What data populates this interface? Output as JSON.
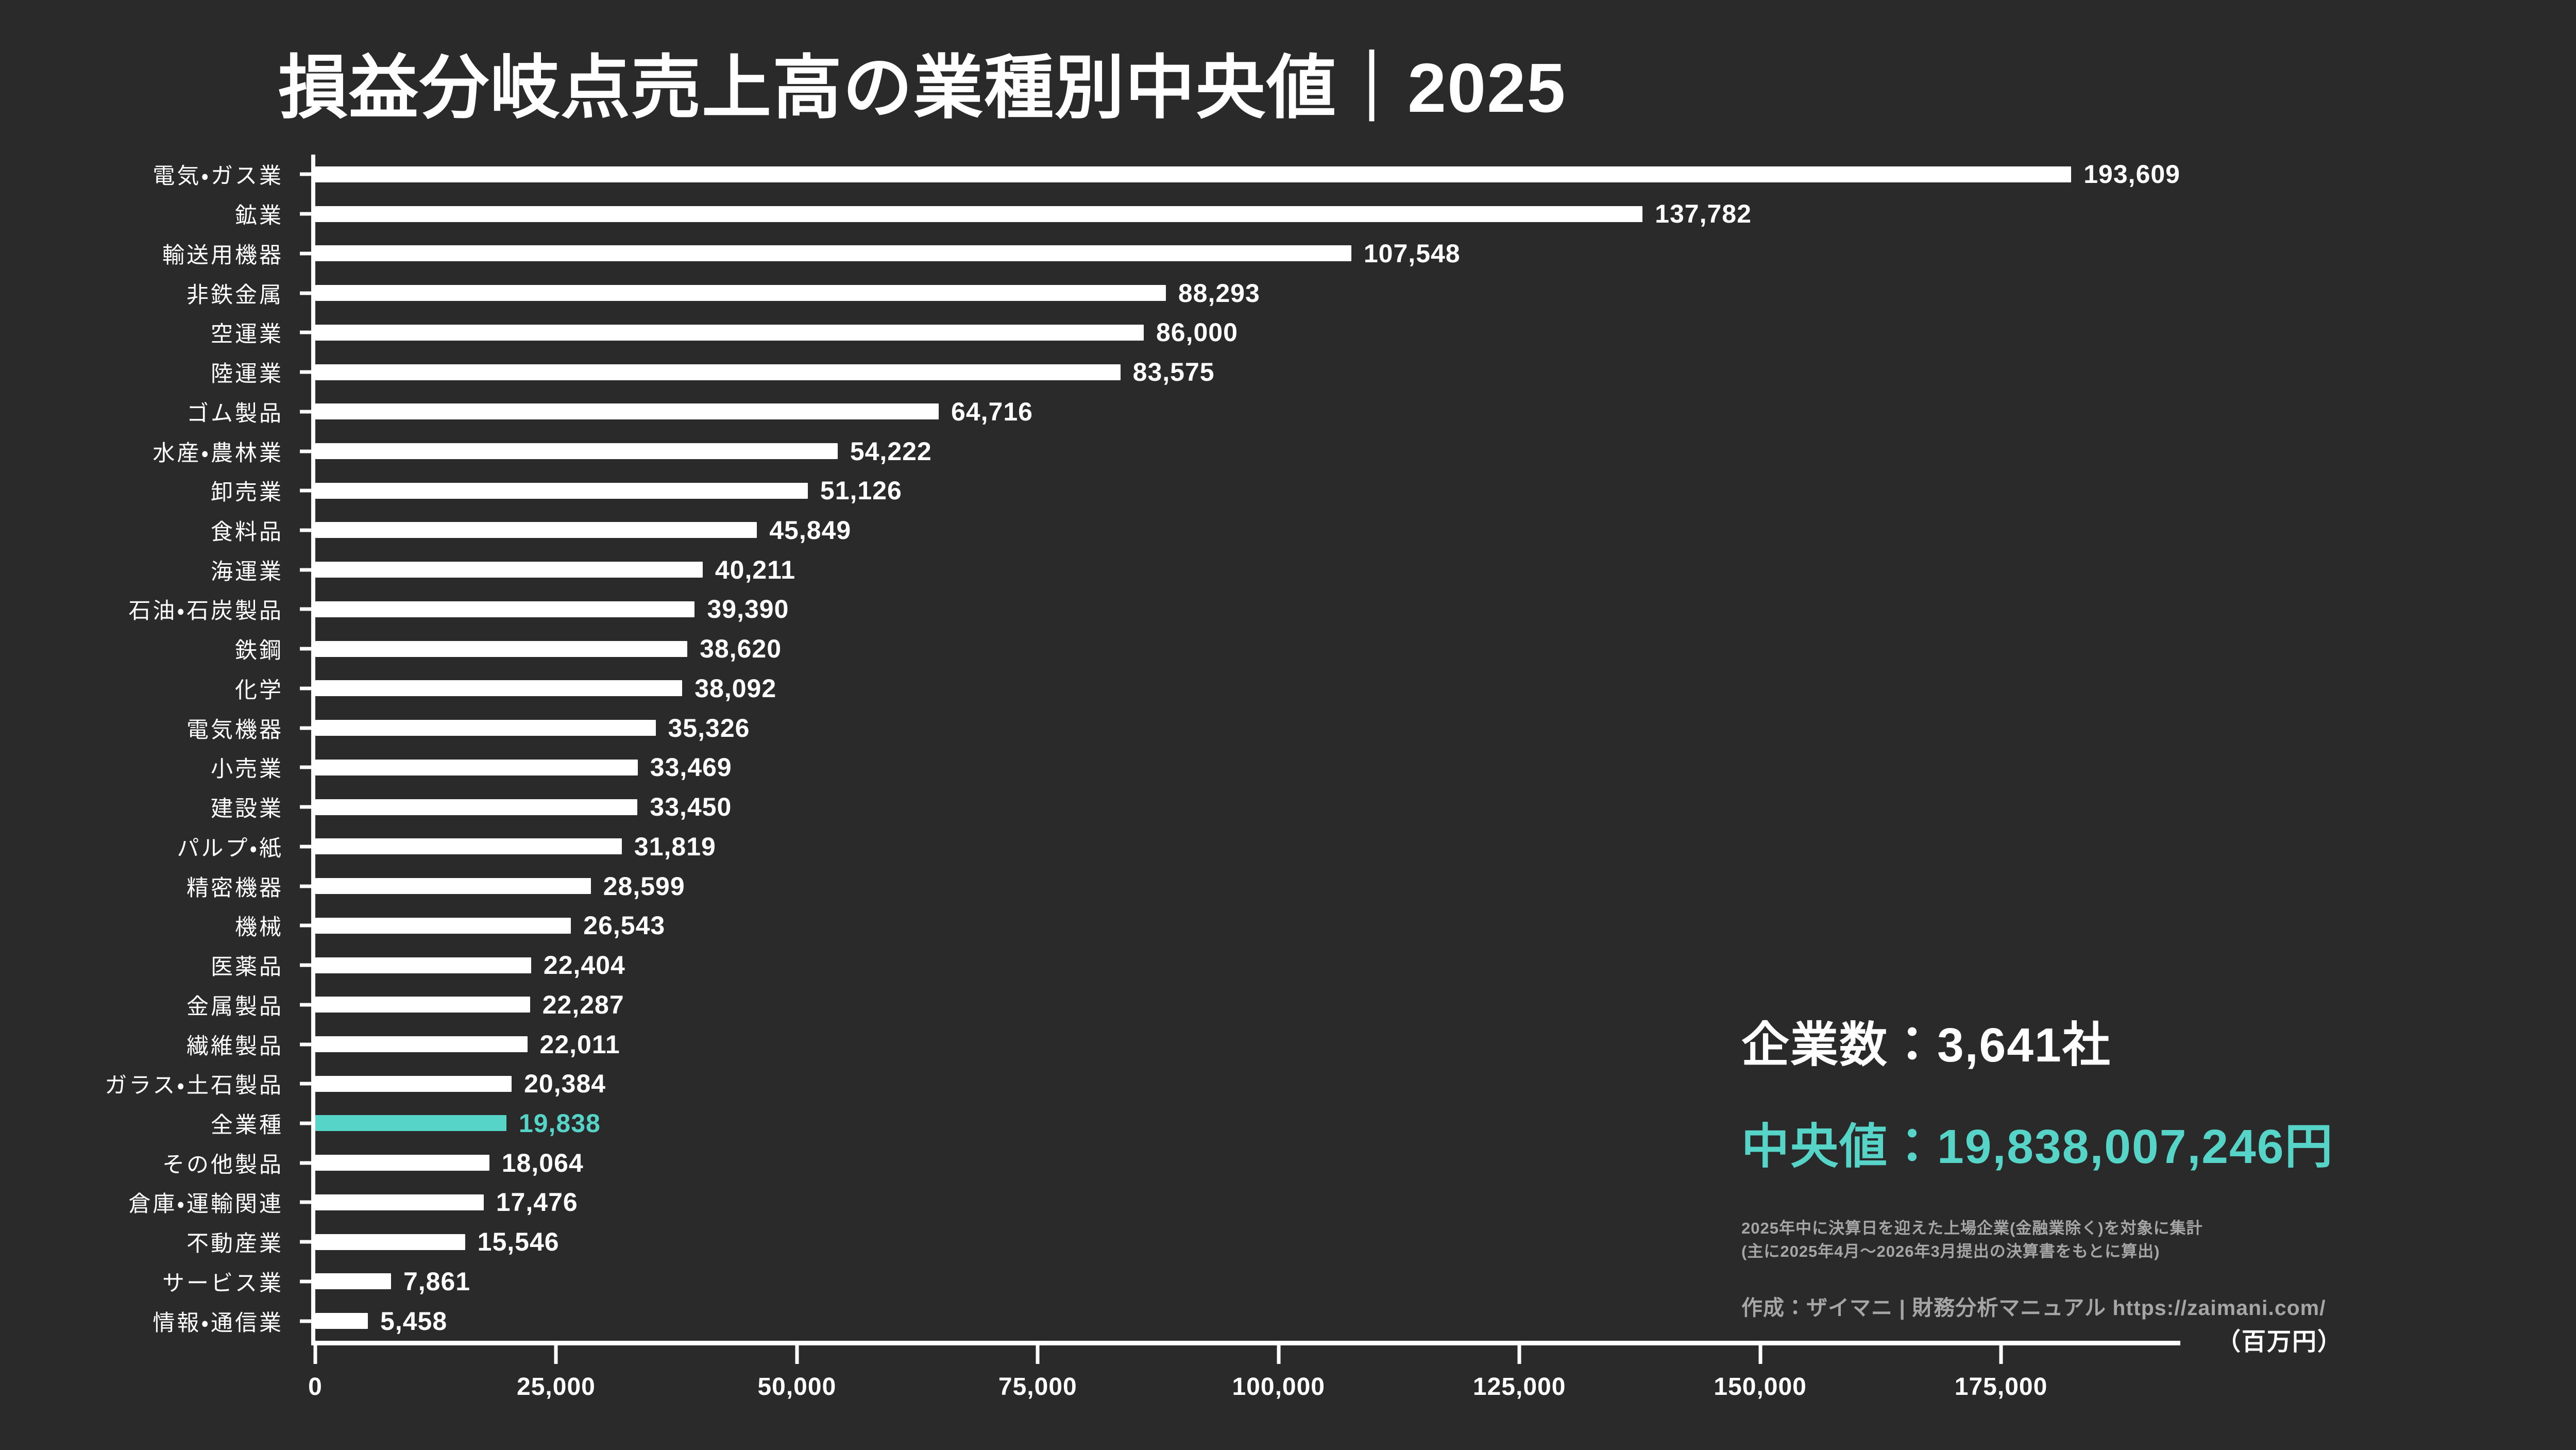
{
  "title": "損益分岐点売上高の業種別中央値｜2025",
  "colors": {
    "background": "#2a2a2a",
    "bar": "#ffffff",
    "accent": "#56d4c8",
    "text": "#ffffff",
    "muted": "#a6a6a6"
  },
  "chart_data": {
    "type": "bar",
    "orientation": "horizontal",
    "title": "損益分岐点売上高の業種別中央値｜2025",
    "unit_label": "（百万円）",
    "highlight_category": "全業種",
    "categories": [
      "電気・ガス業",
      "鉱業",
      "輸送用機器",
      "非鉄金属",
      "空運業",
      "陸運業",
      "ゴム製品",
      "水産・農林業",
      "卸売業",
      "食料品",
      "海運業",
      "石油・石炭製品",
      "鉄鋼",
      "化学",
      "電気機器",
      "小売業",
      "建設業",
      "パルプ・紙",
      "精密機器",
      "機械",
      "医薬品",
      "金属製品",
      "繊維製品",
      "ガラス・土石製品",
      "全業種",
      "その他製品",
      "倉庫・運輸関連",
      "不動産業",
      "サービス業",
      "情報・通信業"
    ],
    "values": [
      193609,
      137782,
      107548,
      88293,
      86000,
      83575,
      64716,
      54222,
      51126,
      45849,
      40211,
      39390,
      38620,
      38092,
      35326,
      33469,
      33450,
      31819,
      28599,
      26543,
      22404,
      22287,
      22011,
      20384,
      19838,
      18064,
      17476,
      15546,
      7861,
      5458
    ],
    "value_labels": [
      "193,609",
      "137,782",
      "107,548",
      "88,293",
      "86,000",
      "83,575",
      "64,716",
      "54,222",
      "51,126",
      "45,849",
      "40,211",
      "39,390",
      "38,620",
      "38,092",
      "35,326",
      "33,469",
      "33,450",
      "31,819",
      "28,599",
      "26,543",
      "22,404",
      "22,287",
      "22,011",
      "20,384",
      "19,838",
      "18,064",
      "17,476",
      "15,546",
      "7,861",
      "5,458"
    ],
    "x_axis": {
      "max": 193609,
      "tick_values": [
        0,
        25000,
        50000,
        75000,
        100000,
        125000,
        150000,
        175000
      ],
      "tick_labels": [
        "0",
        "25,000",
        "50,000",
        "75,000",
        "100,000",
        "125,000",
        "150,000",
        "175,000"
      ],
      "grid": false
    },
    "legend": "none"
  },
  "stats": {
    "companies": "企業数：3,641社",
    "median": "中央値：19,838,007,246円"
  },
  "footnotes": [
    "2025年中に決算日を迎えた上場企業(金融業除く)を対象に集計",
    "(主に2025年4月～2026年3月提出の決算書をもとに算出)"
  ],
  "credit": "作成：ザイマニ | 財務分析マニュアル https://zaimani.com/"
}
